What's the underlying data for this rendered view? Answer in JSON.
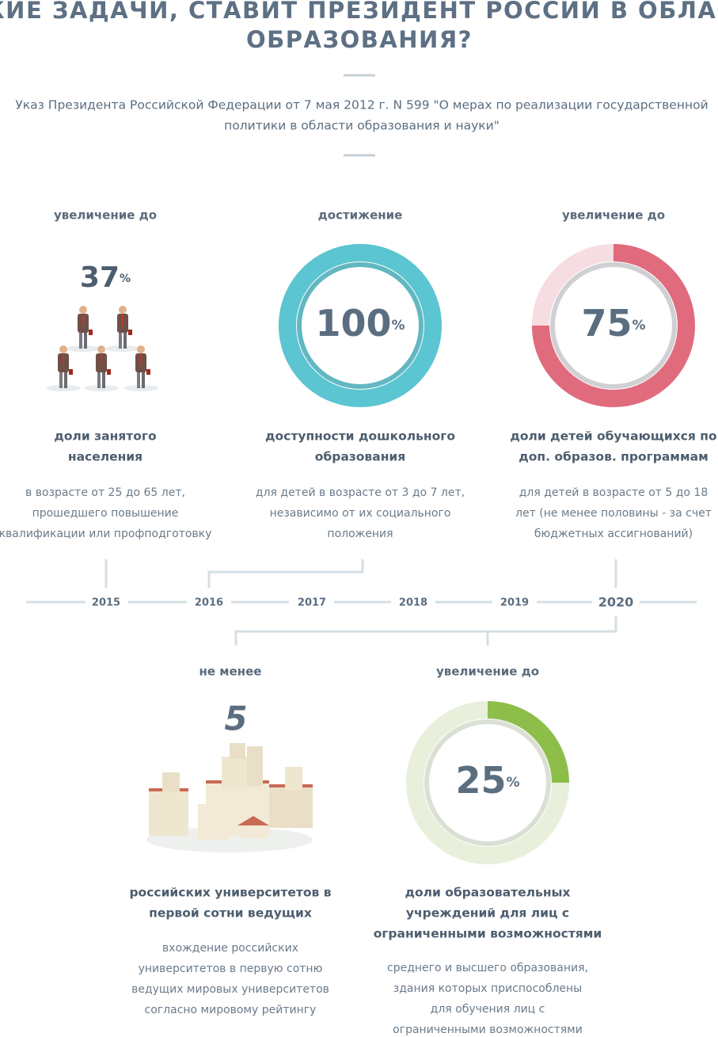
{
  "header": {
    "title": [
      "КАКИЕ ЗАДАЧИ, СТАВИТ ПРЕЗИДЕНТ РОССИИ В ОБЛАСТИ",
      "ОБРАЗОВАНИЯ?"
    ],
    "subtitle": [
      "Указ Президента Российской Федерации от 7 мая 2012 г. N 599 \"О мерах по реализации государственной",
      "политики в области образования и науки\""
    ]
  },
  "items": [
    {
      "label": "увеличение до",
      "value": 37,
      "unit": "%",
      "heading": [
        "доли занятого",
        "населения"
      ],
      "description": [
        "в возрасте от 25 до 65 лет,",
        "прошедшего повышение",
        "квалификации или профподготовку"
      ]
    },
    {
      "label": "достижение",
      "value": 100,
      "unit": "%",
      "heading": [
        "доступности дошкольного",
        "образования"
      ],
      "description": [
        "для детей в возрасте от 3 до 7 лет,",
        "независимо от их социального",
        "положения"
      ]
    },
    {
      "label": "увеличение до",
      "value": 75,
      "unit": "%",
      "heading": [
        "доли детей обучающихся по",
        "доп. образов. программам"
      ],
      "description": [
        "для детей в возрасте от 5 до 18",
        "лет (не менее половины - за счет",
        "бюджетных ассигнований)"
      ]
    },
    {
      "label": "не менее",
      "value": 5,
      "heading": [
        "российских университетов в",
        "первой сотни ведущих"
      ],
      "description": [
        "вхождение российских",
        "университетов в первую сотню",
        "ведущих мировых университетов",
        "согласно мировому рейтингу"
      ]
    },
    {
      "label": "увеличение до",
      "value": 25,
      "unit": "%",
      "heading": [
        "доли образовательных",
        "учреждений для лиц с",
        "ограниченными возможностями"
      ],
      "description": [
        "среднего и высшего образования,",
        "здания которых приспособлены",
        "для обучения лиц с",
        "ограниченными возможностями"
      ]
    }
  ],
  "timeline": [
    2015,
    2016,
    2017,
    2018,
    2019,
    2020
  ]
}
